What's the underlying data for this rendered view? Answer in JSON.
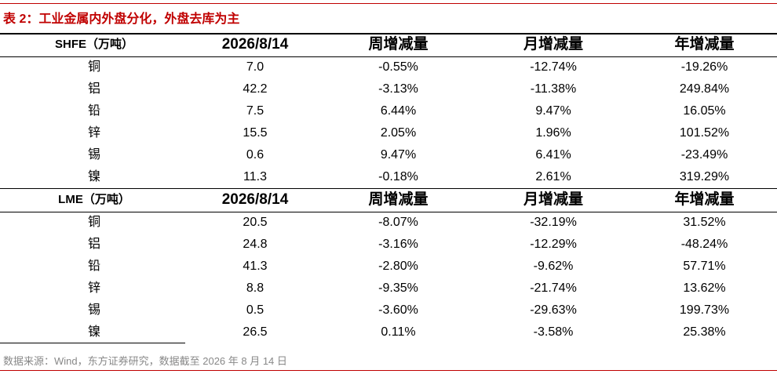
{
  "title": "表 2：工业金属内外盘分化，外盘去库为主",
  "tables": [
    {
      "header": [
        "SHFE（万吨）",
        "2026/8/14",
        "周增减量",
        "月增减量",
        "年增减量"
      ],
      "rows": [
        [
          "铜",
          "7.0",
          "-0.55%",
          "-12.74%",
          "-19.26%"
        ],
        [
          "铝",
          "42.2",
          "-3.13%",
          "-11.38%",
          "249.84%"
        ],
        [
          "铅",
          "7.5",
          "6.44%",
          "9.47%",
          "16.05%"
        ],
        [
          "锌",
          "15.5",
          "2.05%",
          "1.96%",
          "101.52%"
        ],
        [
          "锡",
          "0.6",
          "9.47%",
          "6.41%",
          "-23.49%"
        ],
        [
          "镍",
          "11.3",
          "-0.18%",
          "2.61%",
          "319.29%"
        ]
      ]
    },
    {
      "header": [
        "LME（万吨）",
        "2026/8/14",
        "周增减量",
        "月增减量",
        "年增减量"
      ],
      "rows": [
        [
          "铜",
          "20.5",
          "-8.07%",
          "-32.19%",
          "31.52%"
        ],
        [
          "铝",
          "24.8",
          "-3.16%",
          "-12.29%",
          "-48.24%"
        ],
        [
          "铅",
          "41.3",
          "-2.80%",
          "-9.62%",
          "57.71%"
        ],
        [
          "锌",
          "8.8",
          "-9.35%",
          "-21.74%",
          "13.62%"
        ],
        [
          "锡",
          "0.5",
          "-3.60%",
          "-29.63%",
          "199.73%"
        ],
        [
          "镍",
          "26.5",
          "0.11%",
          "-3.58%",
          "25.38%"
        ]
      ]
    }
  ],
  "source": "数据来源：Wind，东方证券研究，数据截至 2026 年 8 月 14 日"
}
